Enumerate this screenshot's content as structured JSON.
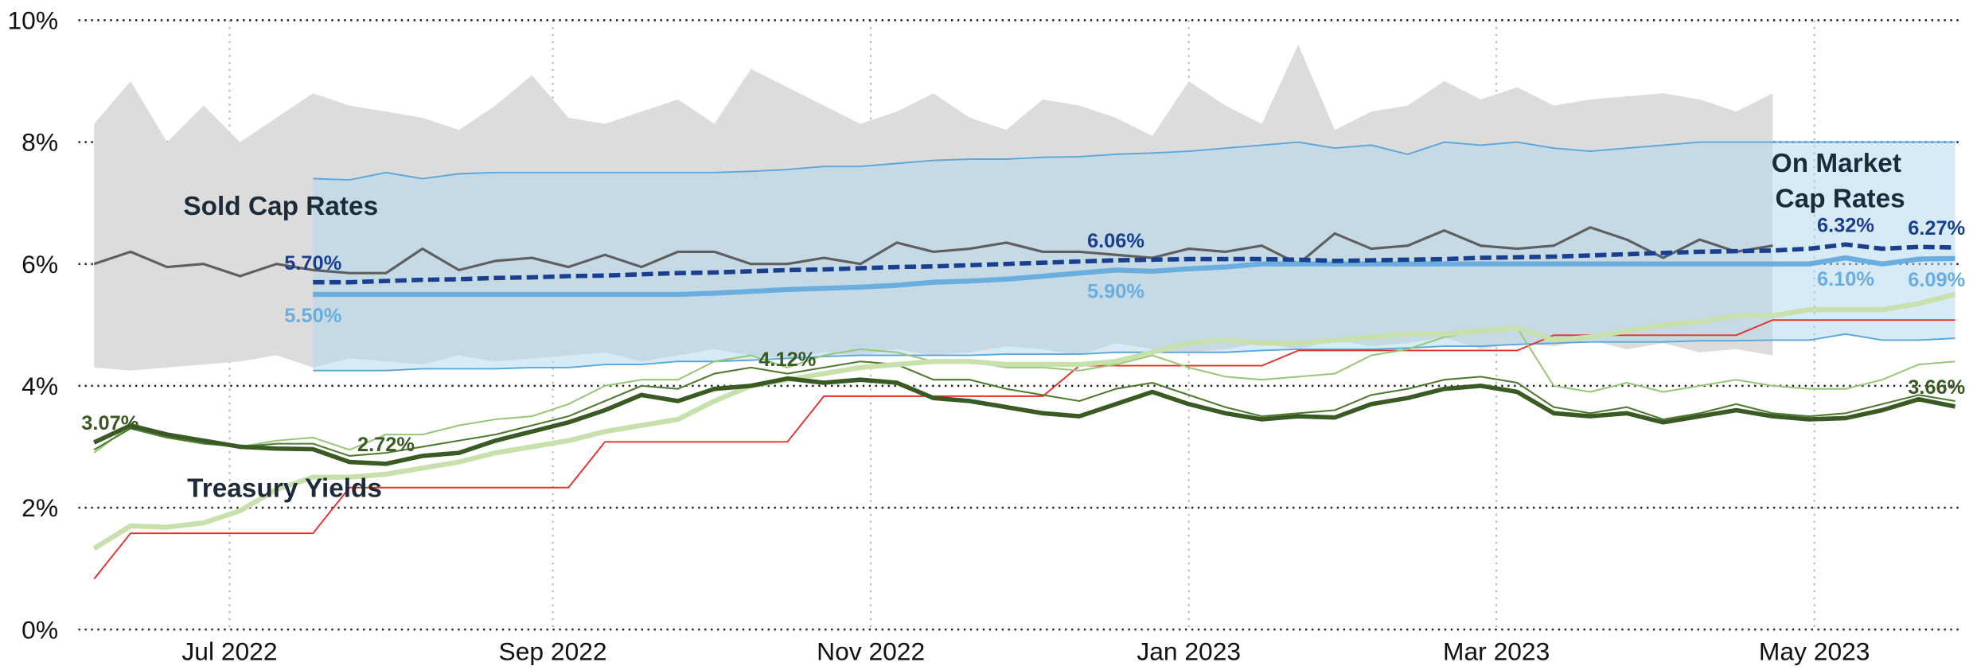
{
  "chart_data": {
    "type": "line",
    "x": [
      "2022-06-05",
      "2022-06-12",
      "2022-06-19",
      "2022-06-26",
      "2022-07-03",
      "2022-07-10",
      "2022-07-17",
      "2022-07-24",
      "2022-07-31",
      "2022-08-07",
      "2022-08-14",
      "2022-08-21",
      "2022-08-28",
      "2022-09-04",
      "2022-09-11",
      "2022-09-18",
      "2022-09-25",
      "2022-10-02",
      "2022-10-09",
      "2022-10-16",
      "2022-10-23",
      "2022-10-30",
      "2022-11-06",
      "2022-11-13",
      "2022-11-20",
      "2022-11-27",
      "2022-12-04",
      "2022-12-11",
      "2022-12-18",
      "2022-12-25",
      "2023-01-01",
      "2023-01-08",
      "2023-01-15",
      "2023-01-22",
      "2023-01-29",
      "2023-02-05",
      "2023-02-12",
      "2023-02-19",
      "2023-02-26",
      "2023-03-05",
      "2023-03-12",
      "2023-03-19",
      "2023-03-26",
      "2023-04-02",
      "2023-04-09",
      "2023-04-16",
      "2023-04-23",
      "2023-04-30",
      "2023-05-07",
      "2023-05-14",
      "2023-05-21",
      "2023-05-28"
    ],
    "xlim": [
      "2022-06-02",
      "2023-05-29"
    ],
    "xticks": [
      {
        "value": "2022-07-01",
        "label": "Jul 2022"
      },
      {
        "value": "2022-09-01",
        "label": "Sep 2022"
      },
      {
        "value": "2022-11-01",
        "label": "Nov 2022"
      },
      {
        "value": "2023-01-01",
        "label": "Jan 2023"
      },
      {
        "value": "2023-03-01",
        "label": "Mar 2023"
      },
      {
        "value": "2023-05-01",
        "label": "May 2023"
      }
    ],
    "ylim": [
      0,
      10
    ],
    "yticks": [
      {
        "value": 0,
        "label": "0%"
      },
      {
        "value": 2,
        "label": "2%"
      },
      {
        "value": 4,
        "label": "4%"
      },
      {
        "value": 6,
        "label": "6%"
      },
      {
        "value": 8,
        "label": "8%"
      },
      {
        "value": 10,
        "label": "10%"
      }
    ],
    "grid": true,
    "annotations": [
      "Sold Cap Rates",
      "On Market",
      "Cap Rates",
      "Treasury Yields"
    ],
    "bands": [
      {
        "color": "#dcdcdc",
        "opacity": 1,
        "high": [
          8.3,
          9.0,
          8.0,
          8.6,
          8.0,
          8.4,
          8.8,
          8.6,
          8.5,
          8.4,
          8.2,
          8.6,
          9.1,
          8.4,
          8.3,
          8.5,
          8.7,
          8.3,
          9.2,
          8.9,
          8.6,
          8.3,
          8.5,
          8.8,
          8.4,
          8.2,
          8.7,
          8.6,
          8.4,
          8.1,
          9.0,
          8.6,
          8.3,
          9.6,
          8.2,
          8.5,
          8.6,
          9.0,
          8.7,
          8.9,
          8.6,
          8.7,
          8.75,
          8.8,
          8.7,
          8.5,
          8.8,
          null,
          null,
          null,
          null,
          null
        ],
        "low": [
          4.3,
          4.25,
          4.3,
          4.35,
          4.4,
          4.5,
          4.3,
          4.45,
          4.4,
          4.35,
          4.5,
          4.4,
          4.45,
          4.5,
          4.55,
          4.4,
          4.5,
          4.6,
          4.5,
          4.45,
          4.55,
          4.5,
          4.6,
          4.5,
          4.55,
          4.65,
          4.6,
          4.5,
          4.7,
          4.6,
          4.55,
          4.6,
          4.7,
          4.6,
          4.75,
          4.65,
          4.7,
          4.8,
          4.6,
          4.7,
          4.65,
          4.75,
          4.6,
          4.7,
          4.55,
          4.6,
          4.5,
          null,
          null,
          null,
          null,
          null
        ]
      },
      {
        "color": "#b0d8f0",
        "opacity": 0.5,
        "edge_color": "#5aa7dc",
        "high": [
          null,
          null,
          null,
          null,
          null,
          null,
          7.4,
          7.38,
          7.5,
          7.4,
          7.48,
          7.5,
          7.5,
          7.5,
          7.5,
          7.5,
          7.5,
          7.5,
          7.52,
          7.55,
          7.6,
          7.6,
          7.65,
          7.7,
          7.72,
          7.72,
          7.75,
          7.76,
          7.8,
          7.82,
          7.85,
          7.9,
          7.95,
          8.0,
          7.9,
          7.95,
          7.8,
          8.0,
          7.95,
          8.0,
          7.9,
          7.85,
          7.9,
          7.95,
          8.0,
          8.0,
          8.0,
          8.0,
          8.0,
          8.0,
          8.0,
          8.0
        ],
        "low": [
          null,
          null,
          null,
          null,
          null,
          null,
          4.25,
          4.25,
          4.25,
          4.28,
          4.28,
          4.28,
          4.3,
          4.3,
          4.35,
          4.35,
          4.4,
          4.4,
          4.42,
          4.45,
          4.48,
          4.5,
          4.5,
          4.5,
          4.5,
          4.52,
          4.52,
          4.52,
          4.55,
          4.55,
          4.55,
          4.55,
          4.58,
          4.6,
          4.6,
          4.6,
          4.62,
          4.65,
          4.65,
          4.68,
          4.7,
          4.72,
          4.72,
          4.72,
          4.74,
          4.74,
          4.75,
          4.75,
          4.85,
          4.75,
          4.75,
          4.78
        ]
      }
    ],
    "series": [
      {
        "color": "#5f5f5f",
        "values": [
          6.0,
          6.2,
          5.95,
          6.0,
          5.8,
          6.0,
          5.9,
          5.85,
          5.85,
          6.25,
          5.9,
          6.05,
          6.1,
          5.95,
          6.15,
          5.95,
          6.2,
          6.2,
          6.0,
          6.0,
          6.1,
          6.0,
          6.35,
          6.2,
          6.25,
          6.35,
          6.2,
          6.2,
          6.15,
          6.1,
          6.25,
          6.2,
          6.3,
          6.0,
          6.5,
          6.25,
          6.3,
          6.55,
          6.3,
          6.25,
          6.3,
          6.6,
          6.4,
          6.1,
          6.4,
          6.2,
          6.3,
          null,
          null,
          null,
          null,
          null
        ]
      },
      {
        "color": "#e8302a",
        "values": [
          0.83,
          1.58,
          1.58,
          1.58,
          1.58,
          1.58,
          1.58,
          2.33,
          2.33,
          2.33,
          2.33,
          2.33,
          2.33,
          2.33,
          3.08,
          3.08,
          3.08,
          3.08,
          3.08,
          3.08,
          3.83,
          3.83,
          3.83,
          3.83,
          3.83,
          3.83,
          3.83,
          4.33,
          4.33,
          4.33,
          4.33,
          4.33,
          4.33,
          4.58,
          4.58,
          4.58,
          4.58,
          4.58,
          4.58,
          4.58,
          4.83,
          4.83,
          4.83,
          4.83,
          4.83,
          4.83,
          5.08,
          5.08,
          5.08,
          5.08,
          5.08,
          5.08
        ]
      },
      {
        "color": "#97c77a",
        "values": [
          2.9,
          3.35,
          3.2,
          3.1,
          3.0,
          3.1,
          3.15,
          2.95,
          3.2,
          3.2,
          3.35,
          3.45,
          3.5,
          3.7,
          4.0,
          4.1,
          4.1,
          4.4,
          4.5,
          4.3,
          4.5,
          4.6,
          4.55,
          4.4,
          4.4,
          4.3,
          4.3,
          4.25,
          4.35,
          4.5,
          4.3,
          4.15,
          4.1,
          4.15,
          4.2,
          4.5,
          4.6,
          4.8,
          4.9,
          4.95,
          4.0,
          3.9,
          4.05,
          3.9,
          4.0,
          4.1,
          4.0,
          3.95,
          3.95,
          4.1,
          4.35,
          4.4
        ]
      },
      {
        "color": "#4f7a30",
        "values": [
          2.95,
          3.3,
          3.15,
          3.05,
          3.0,
          3.05,
          3.05,
          2.85,
          2.9,
          3.0,
          3.1,
          3.2,
          3.35,
          3.5,
          3.75,
          4.0,
          3.95,
          4.2,
          4.3,
          4.2,
          4.3,
          4.4,
          4.35,
          4.1,
          4.1,
          3.95,
          3.85,
          3.75,
          3.95,
          4.05,
          3.85,
          3.65,
          3.5,
          3.55,
          3.6,
          3.85,
          3.95,
          4.1,
          4.15,
          4.05,
          3.65,
          3.55,
          3.65,
          3.45,
          3.55,
          3.7,
          3.55,
          3.5,
          3.55,
          3.7,
          3.85,
          3.75
        ]
      },
      {
        "color": "#c8e0ab",
        "values": [
          1.33,
          1.7,
          1.68,
          1.75,
          1.95,
          2.3,
          2.5,
          2.5,
          2.55,
          2.65,
          2.75,
          2.9,
          3.0,
          3.1,
          3.25,
          3.35,
          3.45,
          3.75,
          4.0,
          4.1,
          4.2,
          4.3,
          4.35,
          4.4,
          4.4,
          4.35,
          4.35,
          4.35,
          4.4,
          4.55,
          4.7,
          4.75,
          4.7,
          4.7,
          4.75,
          4.8,
          4.85,
          4.85,
          4.9,
          4.95,
          4.75,
          4.8,
          4.9,
          5.0,
          5.05,
          5.15,
          5.15,
          5.25,
          5.25,
          5.25,
          5.35,
          5.5
        ]
      },
      {
        "color": "#3a5a23",
        "values": [
          3.07,
          3.35,
          3.2,
          3.1,
          3.0,
          2.97,
          2.96,
          2.75,
          2.72,
          2.85,
          2.9,
          3.1,
          3.25,
          3.4,
          3.6,
          3.85,
          3.75,
          3.95,
          4.0,
          4.12,
          4.05,
          4.1,
          4.05,
          3.8,
          3.75,
          3.65,
          3.55,
          3.5,
          3.7,
          3.9,
          3.7,
          3.55,
          3.45,
          3.5,
          3.48,
          3.7,
          3.8,
          3.95,
          4.0,
          3.9,
          3.55,
          3.5,
          3.55,
          3.4,
          3.5,
          3.6,
          3.5,
          3.45,
          3.47,
          3.6,
          3.78,
          3.66
        ],
        "value_labels": [
          "3.07%",
          null,
          null,
          null,
          null,
          null,
          null,
          null,
          "2.72%",
          null,
          null,
          null,
          null,
          null,
          null,
          null,
          null,
          null,
          null,
          "4.12%",
          null,
          null,
          null,
          null,
          null,
          null,
          null,
          null,
          null,
          null,
          null,
          null,
          null,
          null,
          null,
          null,
          null,
          null,
          null,
          null,
          null,
          null,
          null,
          null,
          null,
          null,
          null,
          null,
          null,
          null,
          null,
          "3.66%"
        ]
      },
      {
        "color": "#6aaee0",
        "values": [
          null,
          null,
          null,
          null,
          null,
          null,
          5.5,
          5.5,
          5.5,
          5.5,
          5.5,
          5.5,
          5.5,
          5.5,
          5.5,
          5.5,
          5.5,
          5.52,
          5.55,
          5.58,
          5.6,
          5.62,
          5.65,
          5.7,
          5.72,
          5.75,
          5.8,
          5.85,
          5.9,
          5.88,
          5.92,
          5.95,
          6.0,
          6.0,
          6.0,
          6.0,
          6.0,
          6.0,
          6.0,
          6.0,
          6.0,
          6.0,
          6.0,
          6.0,
          6.0,
          6.0,
          6.0,
          6.0,
          6.1,
          6.0,
          6.08,
          6.09
        ],
        "value_labels": [
          null,
          null,
          null,
          null,
          null,
          null,
          "5.50%",
          null,
          null,
          null,
          null,
          null,
          null,
          null,
          null,
          null,
          null,
          null,
          null,
          null,
          null,
          null,
          null,
          null,
          null,
          null,
          null,
          null,
          "5.90%",
          null,
          null,
          null,
          null,
          null,
          null,
          null,
          null,
          null,
          null,
          null,
          null,
          null,
          null,
          null,
          null,
          null,
          null,
          null,
          "6.10%",
          null,
          null,
          "6.09%"
        ]
      },
      {
        "color": "#1a3f8f",
        "dash": true,
        "values": [
          null,
          null,
          null,
          null,
          null,
          null,
          5.7,
          5.7,
          5.72,
          5.74,
          5.75,
          5.77,
          5.78,
          5.8,
          5.81,
          5.83,
          5.85,
          5.86,
          5.88,
          5.9,
          5.91,
          5.93,
          5.95,
          5.96,
          5.98,
          6.0,
          6.02,
          6.04,
          6.06,
          6.07,
          6.08,
          6.08,
          6.08,
          6.07,
          6.05,
          6.06,
          6.07,
          6.08,
          6.1,
          6.11,
          6.12,
          6.14,
          6.16,
          6.18,
          6.2,
          6.21,
          6.22,
          6.25,
          6.32,
          6.25,
          6.28,
          6.27
        ],
        "value_labels": [
          null,
          null,
          null,
          null,
          null,
          null,
          "5.70%",
          null,
          null,
          null,
          null,
          null,
          null,
          null,
          null,
          null,
          null,
          null,
          null,
          null,
          null,
          null,
          null,
          null,
          null,
          null,
          null,
          null,
          "6.06%",
          null,
          null,
          null,
          null,
          null,
          null,
          null,
          null,
          null,
          null,
          null,
          null,
          null,
          null,
          null,
          null,
          null,
          null,
          null,
          "6.32%",
          null,
          null,
          "6.27%"
        ]
      }
    ]
  }
}
